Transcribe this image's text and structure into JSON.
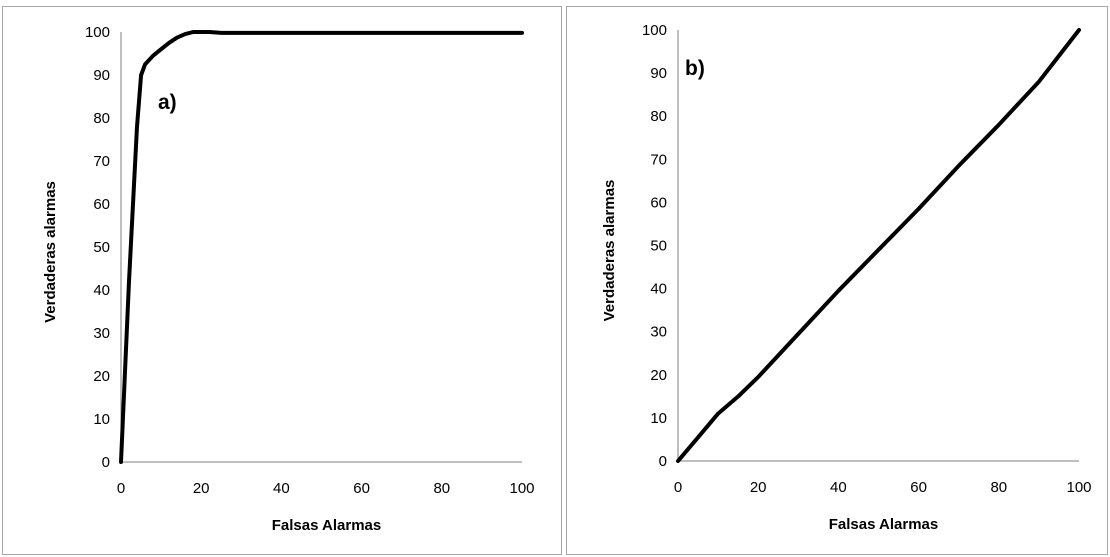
{
  "chart_data": [
    {
      "type": "line",
      "panel_label": "a)",
      "xlabel": "Falsas Alarmas",
      "ylabel": "Verdaderas alarmas",
      "xlim": [
        0,
        100
      ],
      "ylim": [
        0,
        100
      ],
      "xticks": [
        0,
        20,
        40,
        60,
        80,
        100
      ],
      "yticks": [
        0,
        10,
        20,
        30,
        40,
        50,
        60,
        70,
        80,
        90,
        100
      ],
      "grid": false,
      "series": [
        {
          "x": [
            0,
            2,
            4,
            5,
            6,
            8,
            10,
            12,
            14,
            16,
            18,
            20,
            22,
            25,
            30,
            40,
            60,
            80,
            100
          ],
          "y": [
            0,
            42,
            78,
            90,
            92.5,
            94.5,
            96,
            97.5,
            98.7,
            99.5,
            100,
            100,
            100,
            99.8,
            99.8,
            99.8,
            99.8,
            99.8,
            99.8
          ]
        }
      ]
    },
    {
      "type": "line",
      "panel_label": "b)",
      "xlabel": "Falsas Alarmas",
      "ylabel": "Verdaderas alarmas",
      "xlim": [
        0,
        100
      ],
      "ylim": [
        0,
        100
      ],
      "xticks": [
        0,
        20,
        40,
        60,
        80,
        100
      ],
      "yticks": [
        0,
        10,
        20,
        30,
        40,
        50,
        60,
        70,
        80,
        90,
        100
      ],
      "grid": false,
      "series": [
        {
          "x": [
            0,
            5,
            10,
            15,
            20,
            25,
            30,
            40,
            50,
            60,
            70,
            80,
            90,
            95,
            100
          ],
          "y": [
            0,
            5.5,
            11,
            15,
            19.5,
            24.5,
            29.5,
            39.5,
            49,
            58.5,
            68.5,
            78,
            88,
            94,
            100
          ]
        }
      ]
    }
  ]
}
